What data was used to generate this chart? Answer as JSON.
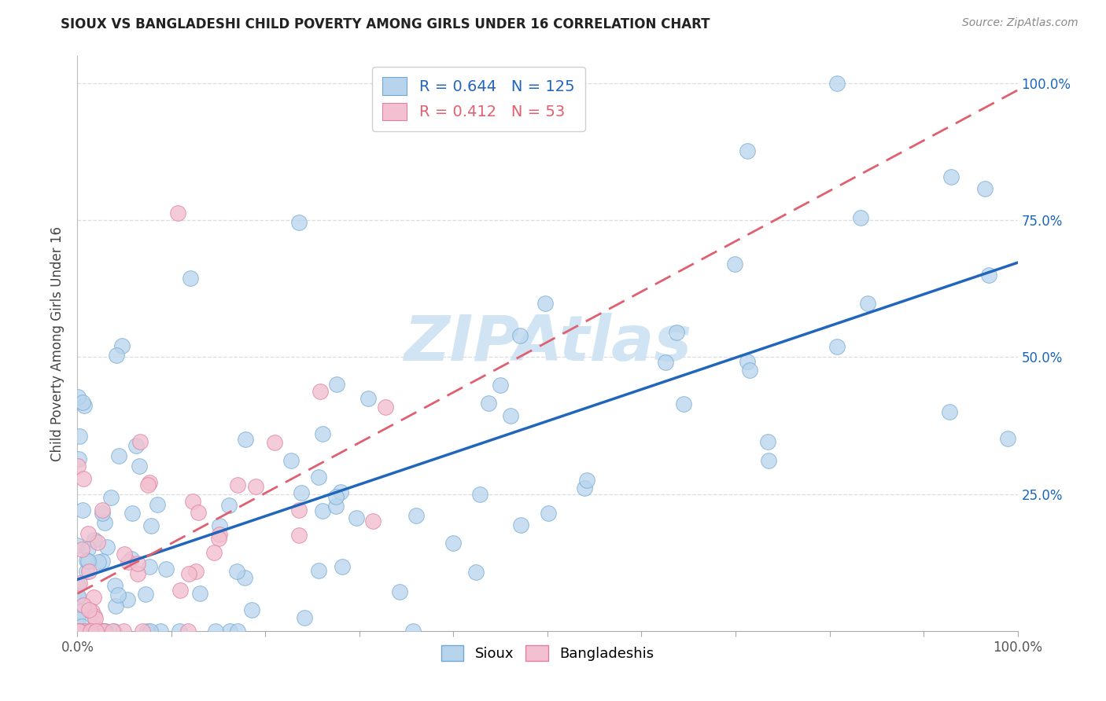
{
  "title": "SIOUX VS BANGLADESHI CHILD POVERTY AMONG GIRLS UNDER 16 CORRELATION CHART",
  "source": "Source: ZipAtlas.com",
  "ylabel": "Child Poverty Among Girls Under 16",
  "sioux_R": 0.644,
  "sioux_N": 125,
  "bangladeshi_R": 0.412,
  "bangladeshi_N": 53,
  "sioux_color": "#b8d4ec",
  "sioux_edge_color": "#6fa8d4",
  "bangladeshi_color": "#f2c0d0",
  "bangladeshi_edge_color": "#e080a0",
  "sioux_line_color": "#2266bb",
  "bangladeshi_line_color": "#e06070",
  "watermark_color": "#d0e4f4",
  "background_color": "#ffffff",
  "grid_color": "#dddddd",
  "title_color": "#222222",
  "source_color": "#888888",
  "axis_label_color": "#444444",
  "tick_label_color": "#1a66bb",
  "yticks": [
    0.25,
    0.5,
    0.75,
    1.0
  ],
  "ytick_labels": [
    "25.0%",
    "50.0%",
    "75.0%",
    "100.0%"
  ],
  "xlim": [
    0.0,
    1.0
  ],
  "ylim": [
    0.0,
    1.05
  ]
}
